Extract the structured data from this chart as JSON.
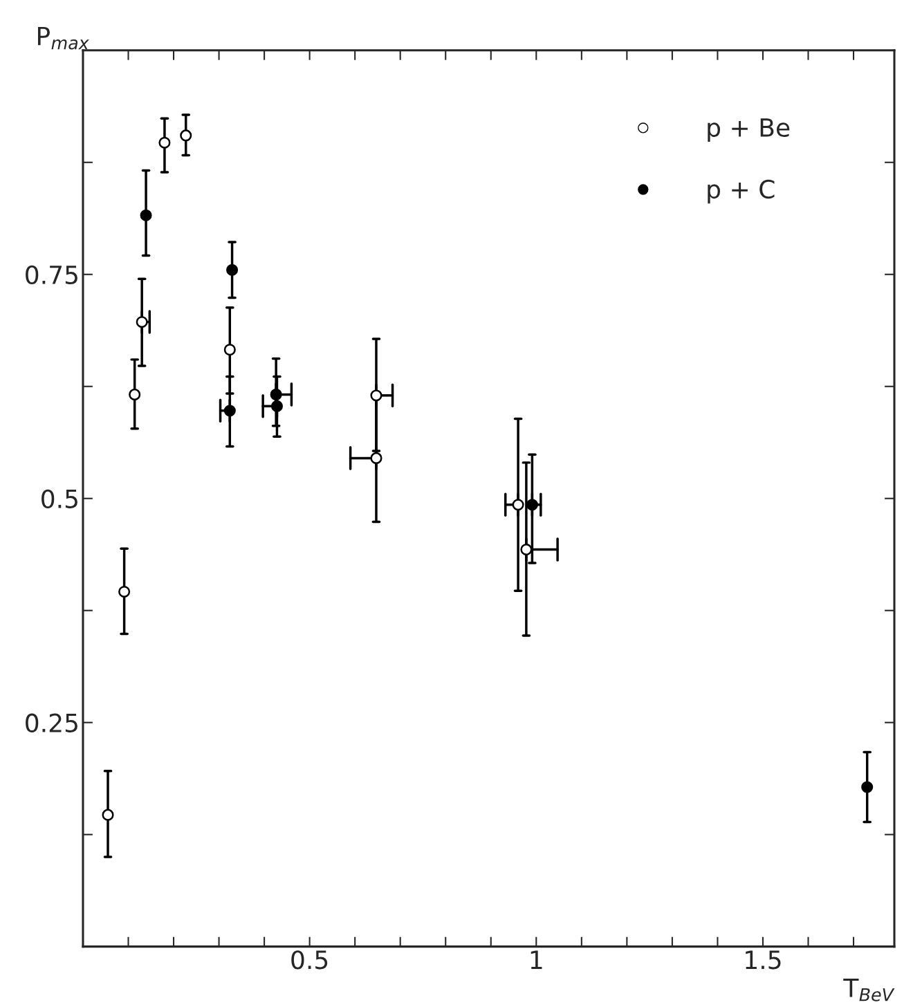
{
  "chart_data": {
    "type": "scatter",
    "xlabel": "T$_{BeV}$",
    "ylabel": "P$_{max}$",
    "xlim": [
      0,
      1.79
    ],
    "ylim": [
      0,
      1
    ],
    "xticks": [
      {
        "value": 0.1,
        "label": null
      },
      {
        "value": 0.2,
        "label": null
      },
      {
        "value": 0.3,
        "label": null
      },
      {
        "value": 0.4,
        "label": null
      },
      {
        "value": 0.5,
        "label": "0.5"
      },
      {
        "value": 0.6,
        "label": null
      },
      {
        "value": 0.7,
        "label": null
      },
      {
        "value": 0.8,
        "label": null
      },
      {
        "value": 0.9,
        "label": null
      },
      1,
      {
        "value": 1.1,
        "label": null
      },
      {
        "value": 1.2,
        "label": null
      },
      {
        "value": 1.3,
        "label": null
      },
      {
        "value": 1.4,
        "label": null
      },
      {
        "value": 1.5,
        "label": "1.5"
      },
      {
        "value": 1.6,
        "label": null
      },
      {
        "value": 1.7,
        "label": null
      }
    ],
    "yticks": [
      {
        "value": 0.125,
        "label": null
      },
      0.25,
      {
        "value": 0.375,
        "label": null
      },
      0.5,
      {
        "value": 0.625,
        "label": null
      },
      0.75,
      {
        "value": 0.875,
        "label": null
      }
    ],
    "grid": false,
    "legend": "top right",
    "marker": "circle",
    "series": [
      {
        "name": "p + Be",
        "color": "#ffffff",
        "x": [
          0.055,
          0.091,
          0.114,
          0.13,
          0.18,
          0.227,
          0.324,
          0.647,
          0.647,
          0.96,
          0.978
        ],
        "values": [
          0.147,
          0.396,
          0.616,
          0.697,
          0.897,
          0.905,
          0.666,
          0.615,
          0.545,
          0.493,
          0.443
        ],
        "errors": [
          [
            0.1,
            0.196
          ],
          [
            0.349,
            0.444
          ],
          [
            0.578,
            0.655
          ],
          [
            0.648,
            0.745
          ],
          [
            0.864,
            0.924
          ],
          [
            0.883,
            0.928
          ],
          [
            0.617,
            0.713
          ],
          [
            0.553,
            0.678
          ],
          [
            0.474,
            0.613
          ],
          [
            0.397,
            0.589
          ],
          [
            0.347,
            0.54
          ]
        ],
        "xerrors": [
          null,
          null,
          null,
          [
            0.13,
            0.147
          ],
          null,
          null,
          null,
          [
            0.647,
            0.683
          ],
          [
            0.59,
            0.647
          ],
          [
            0.932,
            0.96
          ],
          [
            0.978,
            1.047
          ]
        ]
      },
      {
        "name": "p + C",
        "color": "#000000",
        "x": [
          0.139,
          0.329,
          0.324,
          0.426,
          0.428,
          0.991,
          1.73
        ],
        "values": [
          0.816,
          0.755,
          0.598,
          0.616,
          0.603,
          0.493,
          0.178
        ],
        "errors": [
          [
            0.771,
            0.866
          ],
          [
            0.724,
            0.786
          ],
          [
            0.558,
            0.636
          ],
          [
            0.581,
            0.656
          ],
          [
            0.569,
            0.636
          ],
          [
            0.428,
            0.549
          ],
          [
            0.139,
            0.217
          ]
        ],
        "xerrors": [
          null,
          null,
          [
            0.303,
            0.324
          ],
          [
            0.426,
            0.46
          ],
          [
            0.397,
            0.428
          ],
          [
            0.991,
            1.01
          ],
          null
        ]
      }
    ]
  }
}
